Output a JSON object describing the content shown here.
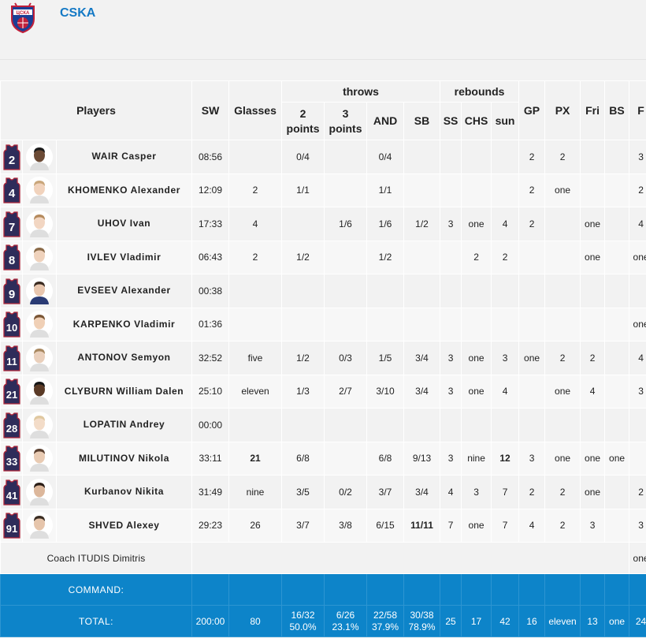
{
  "team": {
    "name": "CSKA",
    "logo_text": "ЦСКА"
  },
  "headers": {
    "players": "Players",
    "sw": "SW",
    "glasses": "Glasses",
    "throws": "throws",
    "two_points": "2 points",
    "three_points": "3 points",
    "and": "AND",
    "sb": "SB",
    "rebounds": "rebounds",
    "ss": "SS",
    "chs": "CHS",
    "sun": "sun",
    "gp": "GP",
    "px": "PX",
    "fri": "Fri",
    "bs": "BS",
    "f": "F"
  },
  "players": [
    {
      "number": "2",
      "name": "WAIR Casper",
      "sw": "08:56",
      "glasses": "",
      "two": "0/4",
      "three": "",
      "and": "0/4",
      "sb": "",
      "ss": "",
      "chs": "",
      "sun": "",
      "gp": "2",
      "px": "2",
      "fri": "",
      "bs": "",
      "f": "3"
    },
    {
      "number": "4",
      "name": "KHOMENKO Alexander",
      "sw": "12:09",
      "glasses": "2",
      "two": "1/1",
      "three": "",
      "and": "1/1",
      "sb": "",
      "ss": "",
      "chs": "",
      "sun": "",
      "gp": "2",
      "px": "one",
      "fri": "",
      "bs": "",
      "f": "2"
    },
    {
      "number": "7",
      "name": "UHOV Ivan",
      "sw": "17:33",
      "glasses": "4",
      "two": "",
      "three": "1/6",
      "and": "1/6",
      "sb": "1/2",
      "ss": "3",
      "chs": "one",
      "sun": "4",
      "gp": "2",
      "px": "",
      "fri": "one",
      "bs": "",
      "f": "4"
    },
    {
      "number": "8",
      "name": "IVLEV Vladimir",
      "sw": "06:43",
      "glasses": "2",
      "two": "1/2",
      "three": "",
      "and": "1/2",
      "sb": "",
      "ss": "",
      "chs": "2",
      "sun": "2",
      "gp": "",
      "px": "",
      "fri": "one",
      "bs": "",
      "f": "one"
    },
    {
      "number": "9",
      "name": "EVSEEV Alexander",
      "sw": "00:38",
      "glasses": "",
      "two": "",
      "three": "",
      "and": "",
      "sb": "",
      "ss": "",
      "chs": "",
      "sun": "",
      "gp": "",
      "px": "",
      "fri": "",
      "bs": "",
      "f": ""
    },
    {
      "number": "10",
      "name": "KARPENKO Vladimir",
      "sw": "01:36",
      "glasses": "",
      "two": "",
      "three": "",
      "and": "",
      "sb": "",
      "ss": "",
      "chs": "",
      "sun": "",
      "gp": "",
      "px": "",
      "fri": "",
      "bs": "",
      "f": "one"
    },
    {
      "number": "11",
      "name": "ANTONOV Semyon",
      "sw": "32:52",
      "glasses": "five",
      "two": "1/2",
      "three": "0/3",
      "and": "1/5",
      "sb": "3/4",
      "ss": "3",
      "chs": "one",
      "sun": "3",
      "gp": "one",
      "px": "2",
      "fri": "2",
      "bs": "",
      "f": "4"
    },
    {
      "number": "21",
      "name": "CLYBURN William Dalen",
      "sw": "25:10",
      "glasses": "eleven",
      "two": "1/3",
      "three": "2/7",
      "and": "3/10",
      "sb": "3/4",
      "ss": "3",
      "chs": "one",
      "sun": "4",
      "gp": "",
      "px": "one",
      "fri": "4",
      "bs": "",
      "f": "3"
    },
    {
      "number": "28",
      "name": "LOPATIN Andrey",
      "sw": "00:00",
      "glasses": "",
      "two": "",
      "three": "",
      "and": "",
      "sb": "",
      "ss": "",
      "chs": "",
      "sun": "",
      "gp": "",
      "px": "",
      "fri": "",
      "bs": "",
      "f": ""
    },
    {
      "number": "33",
      "name": "MILUTINOV Nikola",
      "sw": "33:11",
      "glasses": "21",
      "two": "6/8",
      "three": "",
      "and": "6/8",
      "sb": "9/13",
      "ss": "3",
      "chs": "nine",
      "sun": "12",
      "gp": "3",
      "px": "one",
      "fri": "one",
      "bs": "one",
      "f": ""
    },
    {
      "number": "41",
      "name": "Kurbanov Nikita",
      "sw": "31:49",
      "glasses": "nine",
      "two": "3/5",
      "three": "0/2",
      "and": "3/7",
      "sb": "3/4",
      "ss": "4",
      "chs": "3",
      "sun": "7",
      "gp": "2",
      "px": "2",
      "fri": "one",
      "bs": "",
      "f": "2"
    },
    {
      "number": "91",
      "name": "SHVED Alexey",
      "sw": "29:23",
      "glasses": "26",
      "two": "3/7",
      "three": "3/8",
      "and": "6/15",
      "sb": "11/11",
      "ss": "7",
      "chs": "one",
      "sun": "7",
      "gp": "4",
      "px": "2",
      "fri": "3",
      "bs": "",
      "f": "3"
    }
  ],
  "coach": {
    "name": "Coach ITUDIS Dimitris",
    "f": "one"
  },
  "command": {
    "label": "COMMAND:"
  },
  "total": {
    "label": "TOTAL:",
    "sw": "200:00",
    "glasses": "80",
    "two": "16/32 50.0%",
    "three": "6/26 23.1%",
    "and": "22/58 37.9%",
    "sb": "30/38 78.9%",
    "ss": "25",
    "chs": "17",
    "sun": "42",
    "gp": "16",
    "px": "eleven",
    "fri": "13",
    "bs": "one",
    "f": "24"
  },
  "colors": {
    "accent": "#1479c5",
    "total_bar": "#0d84c9",
    "jersey": "#2e2c5a",
    "jersey_stripe": "#b0263a"
  }
}
